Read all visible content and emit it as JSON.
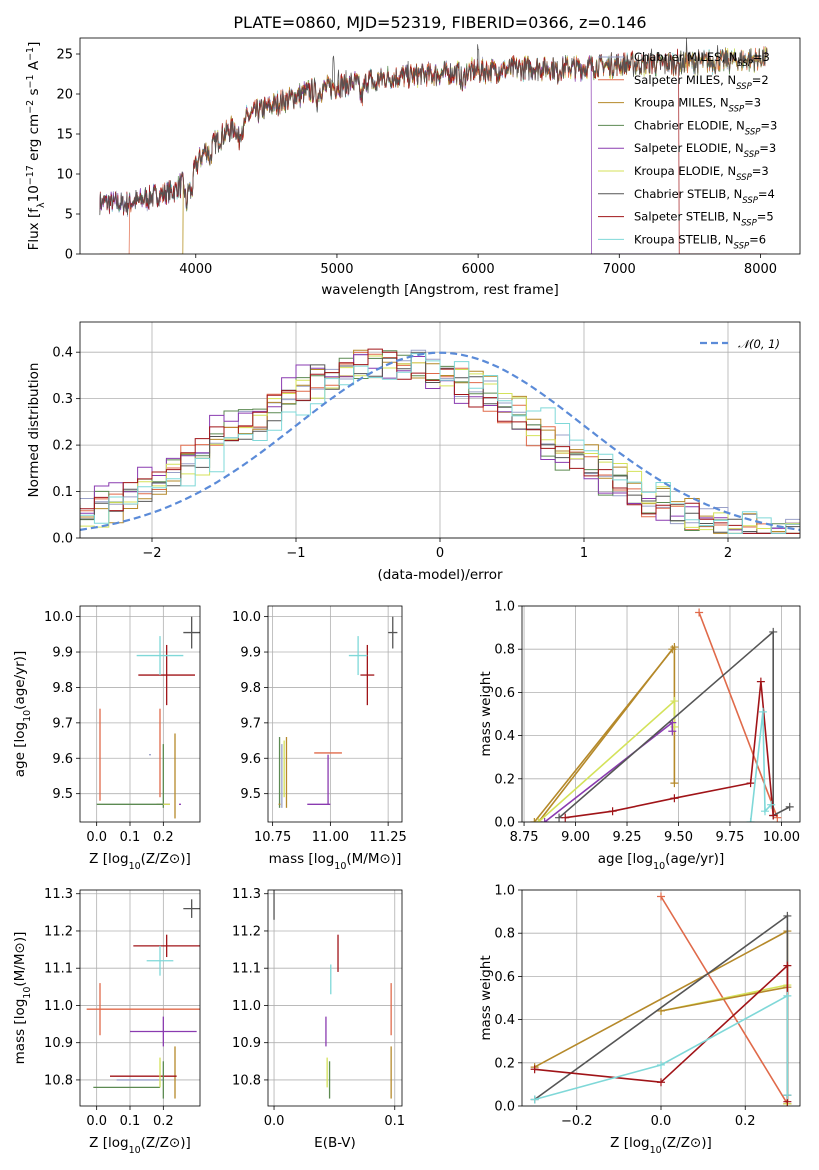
{
  "figure_title": "PLATE=0860, MJD=52319, FIBERID=0366, z=0.146",
  "models": [
    {
      "name": "Chabrier MILES, N",
      "sub": "SSP",
      "tail": "=3",
      "color": "#9aa0c8"
    },
    {
      "name": "Salpeter MILES, N",
      "sub": "SSP",
      "tail": "=2",
      "color": "#e06a4a"
    },
    {
      "name": "Kroupa MILES, N",
      "sub": "SSP",
      "tail": "=3",
      "color": "#b5892a"
    },
    {
      "name": "Chabrier ELODIE, N",
      "sub": "SSP",
      "tail": "=3",
      "color": "#5c8a52"
    },
    {
      "name": "Salpeter ELODIE, N",
      "sub": "SSP",
      "tail": "=3",
      "color": "#8a3bb0"
    },
    {
      "name": "Kroupa ELODIE, N",
      "sub": "SSP",
      "tail": "=3",
      "color": "#d4e25a"
    },
    {
      "name": "Chabrier STELIB, N",
      "sub": "SSP",
      "tail": "=4",
      "color": "#555555"
    },
    {
      "name": "Salpeter STELIB, N",
      "sub": "SSP",
      "tail": "=5",
      "color": "#a01418"
    },
    {
      "name": "Kroupa STELIB, N",
      "sub": "SSP",
      "tail": "=6",
      "color": "#7fd8d8"
    }
  ],
  "chart_data": [
    {
      "id": "spectrum",
      "type": "line",
      "xlabel": "wavelength [Angstrom, rest frame]",
      "ylabel_parts": [
        "Flux [f",
        "λ",
        "10",
        "−17",
        " erg cm",
        "−2",
        " s",
        "−1",
        " A",
        "−1",
        "]"
      ],
      "xlim": [
        3180,
        8280
      ],
      "ylim": [
        0,
        27
      ],
      "xticks": [
        4000,
        5000,
        6000,
        7000,
        8000
      ],
      "yticks": [
        0,
        5,
        10,
        15,
        20,
        25
      ],
      "grid": false,
      "legend": "upper-right",
      "continuum_knots": [
        [
          3320,
          6.5
        ],
        [
          3500,
          6.2
        ],
        [
          3700,
          7.2
        ],
        [
          3850,
          8.0
        ],
        [
          3950,
          9.5
        ],
        [
          4050,
          12.5
        ],
        [
          4200,
          15.0
        ],
        [
          4400,
          17.5
        ],
        [
          4600,
          19.0
        ],
        [
          4800,
          20.3
        ],
        [
          5000,
          21.0
        ],
        [
          5200,
          21.7
        ],
        [
          5500,
          22.3
        ],
        [
          5800,
          22.6
        ],
        [
          6100,
          23.0
        ],
        [
          6400,
          23.3
        ],
        [
          6700,
          23.3
        ],
        [
          7000,
          23.7
        ],
        [
          7300,
          23.8
        ],
        [
          7600,
          24.0
        ],
        [
          7900,
          24.3
        ],
        [
          8050,
          24.5
        ]
      ],
      "absorption_lines": [
        [
          3934,
          3.0,
          10
        ],
        [
          3969,
          2.5,
          10
        ],
        [
          4102,
          1.5,
          8
        ],
        [
          4304,
          2.0,
          12
        ],
        [
          4340,
          1.2,
          8
        ],
        [
          4861,
          1.2,
          8
        ],
        [
          5175,
          2.0,
          14
        ],
        [
          5270,
          1.0,
          10
        ],
        [
          5890,
          1.5,
          10
        ],
        [
          6563,
          0.8,
          8
        ]
      ],
      "emission_spikes": [
        [
          4975,
          3.5
        ],
        [
          5010,
          2.0
        ],
        [
          6000,
          2.5
        ],
        [
          7230,
          2.0
        ],
        [
          7480,
          2.0
        ],
        [
          7700,
          1.5
        ]
      ],
      "truncated_series": [
        {
          "model": 1,
          "start": 3530
        },
        {
          "model": 2,
          "start": 3910
        },
        {
          "model": 5,
          "start": 3910
        },
        {
          "model": 4,
          "end": 6800
        },
        {
          "model": 7,
          "end": 7420
        }
      ]
    },
    {
      "id": "residual-hist",
      "type": "histogram",
      "xlabel": "(data-model)/error",
      "ylabel": "Normed distribution",
      "xlim": [
        -2.5,
        2.5
      ],
      "ylim": [
        0,
        0.465
      ],
      "xticks": [
        -2,
        -1,
        0,
        1,
        2
      ],
      "yticks": [
        0.0,
        0.1,
        0.2,
        0.3,
        0.4
      ],
      "grid": true,
      "legend": "upper-right",
      "reference_curve": {
        "label": "𝒩(0, 1)",
        "color": "#5b8bd8",
        "mean": 0,
        "sigma": 1
      },
      "bin_width": 0.1,
      "model_peak_offsets": [
        -0.35,
        -0.4,
        -0.3,
        -0.45,
        -0.5,
        -0.3,
        -0.35,
        -0.4,
        -0.2
      ]
    },
    {
      "id": "age-vs-Z",
      "type": "errorbar",
      "xlabel": "Z [log10(Z/Z⊙)]",
      "ylabel": "age  [log10(age/yr)]",
      "xlim": [
        -0.05,
        0.31
      ],
      "ylim": [
        9.42,
        10.03
      ],
      "xticks": [
        0.0,
        0.1,
        0.2
      ],
      "yticks": [
        9.5,
        9.6,
        9.7,
        9.8,
        9.9,
        10.0
      ],
      "grid": true,
      "points": [
        {
          "model": 0,
          "x": 0.2,
          "xerr": 0.0,
          "y": 9.47,
          "yerr": 0.0
        },
        {
          "model": 1,
          "x": 0.19,
          "xerr": 0.0,
          "y": 9.615,
          "yerr": 0.125
        },
        {
          "model": 2,
          "x": 0.235,
          "xerr": 0.0,
          "y": 9.55,
          "yerr": 0.12
        },
        {
          "model": 3,
          "x": 0.2,
          "xerr": 0.0,
          "y": 9.55,
          "yerr": 0.09
        },
        {
          "model": 4,
          "x": 0.2,
          "xerr": 0.02,
          "y": 9.47,
          "yerr": 0.0
        },
        {
          "model": 5,
          "x": 0.2,
          "xerr": 0.02,
          "y": 9.47,
          "yerr": 0.0
        },
        {
          "model": 6,
          "x": 0.285,
          "xerr": 0.025,
          "y": 9.955,
          "yerr": 0.045
        },
        {
          "model": 7,
          "x": 0.21,
          "xerr": 0.085,
          "y": 9.835,
          "yerr": 0.085
        },
        {
          "model": 8,
          "x": 0.19,
          "xerr": 0.07,
          "y": 9.89,
          "yerr": 0.055
        },
        {
          "model": 1,
          "x": 0.01,
          "xerr": 0.0,
          "y": 9.61,
          "yerr": 0.13
        },
        {
          "model": 0,
          "x": 0.16,
          "xerr": 0.0,
          "y": 9.61,
          "yerr": 0.0
        },
        {
          "model": 3,
          "x": 0.1,
          "xerr": 0.1,
          "y": 9.47,
          "yerr": 0.0
        },
        {
          "model": 4,
          "x": 0.25,
          "xerr": 0.0,
          "y": 9.47,
          "yerr": 0.0
        }
      ]
    },
    {
      "id": "age-vs-mass",
      "type": "errorbar",
      "xlabel": "mass [log10(M/M⊙)]",
      "ylabel": "",
      "xlim": [
        10.73,
        11.31
      ],
      "ylim": [
        9.42,
        10.03
      ],
      "xticks": [
        10.75,
        11.0,
        11.25
      ],
      "yticks": [
        9.5,
        9.6,
        9.7,
        9.8,
        9.9,
        10.0
      ],
      "grid": true,
      "points": [
        {
          "model": 0,
          "x": 10.79,
          "xerr": 0.0,
          "y": 9.55,
          "yerr": 0.09
        },
        {
          "model": 1,
          "x": 10.99,
          "xerr": 0.06,
          "y": 9.615,
          "yerr": 0.0
        },
        {
          "model": 2,
          "x": 10.81,
          "xerr": 0.0,
          "y": 9.56,
          "yerr": 0.1
        },
        {
          "model": 3,
          "x": 10.78,
          "xerr": 0.0,
          "y": 9.56,
          "yerr": 0.1
        },
        {
          "model": 4,
          "x": 10.95,
          "xerr": 0.05,
          "y": 9.47,
          "yerr": 0.0
        },
        {
          "model": 5,
          "x": 10.8,
          "xerr": 0.0,
          "y": 9.57,
          "yerr": 0.08
        },
        {
          "model": 6,
          "x": 11.27,
          "xerr": 0.02,
          "y": 9.955,
          "yerr": 0.045
        },
        {
          "model": 7,
          "x": 11.16,
          "xerr": 0.03,
          "y": 9.835,
          "yerr": 0.085
        },
        {
          "model": 8,
          "x": 11.12,
          "xerr": 0.04,
          "y": 9.89,
          "yerr": 0.055
        },
        {
          "model": 4,
          "x": 10.99,
          "xerr": 0.0,
          "y": 9.54,
          "yerr": 0.07
        },
        {
          "model": 2,
          "x": 10.78,
          "xerr": 0.0,
          "y": 9.47,
          "yerr": 0.0
        }
      ]
    },
    {
      "id": "mass-weight-vs-age",
      "type": "line",
      "xlabel": "age  [log10(age/yr)]",
      "ylabel": "mass weight",
      "xlim": [
        8.74,
        10.09
      ],
      "ylim": [
        0,
        1.0
      ],
      "xticks": [
        8.75,
        9.0,
        9.25,
        9.5,
        9.75,
        10.0
      ],
      "yticks": [
        0.0,
        0.2,
        0.4,
        0.6,
        0.8,
        1.0
      ],
      "grid": true,
      "series": [
        {
          "model": 1,
          "points": [
            [
              9.6,
              0.97
            ],
            [
              9.98,
              0.02
            ]
          ]
        },
        {
          "model": 2,
          "points": [
            [
              8.8,
              0.0
            ],
            [
              9.48,
              0.81
            ],
            [
              9.48,
              0.18
            ]
          ]
        },
        {
          "model": 2,
          "points": [
            [
              8.82,
              0.0
            ],
            [
              9.47,
              0.8
            ]
          ]
        },
        {
          "model": 5,
          "points": [
            [
              8.82,
              0.0
            ],
            [
              9.48,
              0.56
            ],
            [
              9.48,
              0.44
            ]
          ]
        },
        {
          "model": 4,
          "points": [
            [
              8.85,
              0.0
            ],
            [
              9.47,
              0.46
            ],
            [
              9.47,
              0.42
            ]
          ]
        },
        {
          "model": 6,
          "points": [
            [
              8.92,
              0.02
            ],
            [
              9.96,
              0.88
            ],
            [
              9.96,
              0.03
            ],
            [
              10.04,
              0.07
            ]
          ]
        },
        {
          "model": 7,
          "points": [
            [
              8.95,
              0.02
            ],
            [
              9.18,
              0.05
            ],
            [
              9.48,
              0.11
            ],
            [
              9.85,
              0.18
            ],
            [
              9.9,
              0.65
            ],
            [
              9.96,
              0.03
            ]
          ]
        },
        {
          "model": 8,
          "points": [
            [
              9.85,
              0.0
            ],
            [
              9.91,
              0.51
            ],
            [
              9.92,
              0.05
            ],
            [
              9.95,
              0.08
            ]
          ]
        }
      ]
    },
    {
      "id": "mass-vs-Z",
      "type": "errorbar",
      "xlabel": "Z [log10(Z/Z⊙)]",
      "ylabel": "mass [log10(M/M⊙)]",
      "xlim": [
        -0.05,
        0.31
      ],
      "ylim": [
        10.73,
        11.31
      ],
      "xticks": [
        0.0,
        0.1,
        0.2
      ],
      "yticks": [
        10.8,
        10.9,
        11.0,
        11.1,
        11.2,
        11.3
      ],
      "grid": true,
      "points": [
        {
          "model": 0,
          "x": 0.13,
          "xerr": 0.07,
          "y": 10.8,
          "yerr": 0.0
        },
        {
          "model": 1,
          "x": 0.01,
          "xerr": 0.0,
          "y": 10.99,
          "yerr": 0.07
        },
        {
          "model": 1,
          "x": 0.14,
          "xerr": 0.17,
          "y": 10.99,
          "yerr": 0.0
        },
        {
          "model": 2,
          "x": 0.235,
          "xerr": 0.0,
          "y": 10.82,
          "yerr": 0.07
        },
        {
          "model": 7,
          "x": 0.14,
          "xerr": 0.1,
          "y": 10.81,
          "yerr": 0.0
        },
        {
          "model": 3,
          "x": 0.09,
          "xerr": 0.1,
          "y": 10.78,
          "yerr": 0.0
        },
        {
          "model": 3,
          "x": 0.2,
          "xerr": 0.0,
          "y": 10.8,
          "yerr": 0.05
        },
        {
          "model": 4,
          "x": 0.2,
          "xerr": 0.1,
          "y": 10.93,
          "yerr": 0.04
        },
        {
          "model": 5,
          "x": 0.19,
          "xerr": 0.0,
          "y": 10.82,
          "yerr": 0.04
        },
        {
          "model": 6,
          "x": 0.285,
          "xerr": 0.025,
          "y": 11.26,
          "yerr": 0.025
        },
        {
          "model": 7,
          "x": 0.21,
          "xerr": 0.1,
          "y": 11.16,
          "yerr": 0.03
        },
        {
          "model": 8,
          "x": 0.19,
          "xerr": 0.04,
          "y": 11.12,
          "yerr": 0.04
        }
      ]
    },
    {
      "id": "mass-vs-EBV",
      "type": "errorbar",
      "xlabel": "E(B-V)",
      "ylabel": "",
      "xlim": [
        -0.005,
        0.106
      ],
      "ylim": [
        10.73,
        11.31
      ],
      "xticks": [
        0.0,
        0.1
      ],
      "yticks": [
        10.8,
        10.9,
        11.0,
        11.1,
        11.2,
        11.3
      ],
      "grid": true,
      "points": [
        {
          "model": 6,
          "x": 0.0,
          "xerr": 0.0,
          "y": 11.27,
          "yerr": 0.04
        },
        {
          "model": 7,
          "x": 0.053,
          "xerr": 0.0,
          "y": 11.14,
          "yerr": 0.05
        },
        {
          "model": 8,
          "x": 0.047,
          "xerr": 0.0,
          "y": 11.07,
          "yerr": 0.04
        },
        {
          "model": 1,
          "x": 0.097,
          "xerr": 0.0,
          "y": 10.99,
          "yerr": 0.07
        },
        {
          "model": 4,
          "x": 0.043,
          "xerr": 0.0,
          "y": 10.93,
          "yerr": 0.04
        },
        {
          "model": 5,
          "x": 0.044,
          "xerr": 0.0,
          "y": 10.82,
          "yerr": 0.04
        },
        {
          "model": 3,
          "x": 0.046,
          "xerr": 0.0,
          "y": 10.8,
          "yerr": 0.05
        },
        {
          "model": 2,
          "x": 0.097,
          "xerr": 0.0,
          "y": 10.82,
          "yerr": 0.07
        }
      ]
    },
    {
      "id": "mass-weight-vs-Z",
      "type": "line",
      "xlabel": "Z [log10(Z/Z⊙)]",
      "ylabel": "mass weight",
      "xlim": [
        -0.33,
        0.33
      ],
      "ylim": [
        0,
        1.0
      ],
      "xticks": [
        -0.2,
        0.0,
        0.2
      ],
      "yticks": [
        0.0,
        0.2,
        0.4,
        0.6,
        0.8,
        1.0
      ],
      "grid": true,
      "series": [
        {
          "model": 1,
          "points": [
            [
              0.0,
              0.97
            ],
            [
              0.3,
              0.01
            ]
          ]
        },
        {
          "model": 2,
          "points": [
            [
              -0.3,
              0.18
            ],
            [
              0.3,
              0.81
            ],
            [
              0.3,
              0.01
            ]
          ]
        },
        {
          "model": 5,
          "points": [
            [
              0.0,
              0.44
            ],
            [
              0.3,
              0.56
            ],
            [
              0.3,
              0.01
            ]
          ]
        },
        {
          "model": 2,
          "points": [
            [
              0.0,
              0.44
            ],
            [
              0.3,
              0.55
            ]
          ]
        },
        {
          "model": 6,
          "points": [
            [
              -0.3,
              0.03
            ],
            [
              0.3,
              0.88
            ],
            [
              0.3,
              0.05
            ]
          ]
        },
        {
          "model": 7,
          "points": [
            [
              -0.3,
              0.17
            ],
            [
              0.0,
              0.11
            ],
            [
              0.3,
              0.65
            ],
            [
              0.3,
              0.02
            ]
          ]
        },
        {
          "model": 8,
          "points": [
            [
              -0.3,
              0.03
            ],
            [
              0.0,
              0.19
            ],
            [
              0.3,
              0.51
            ],
            [
              0.3,
              0.05
            ]
          ]
        }
      ]
    }
  ]
}
